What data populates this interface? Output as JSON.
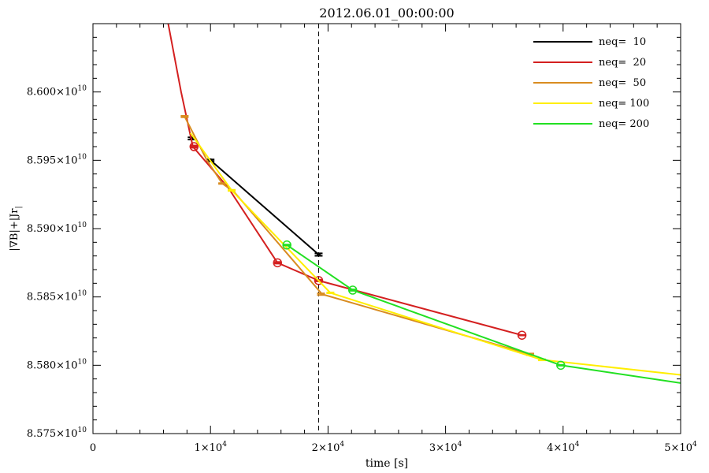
{
  "chart_data": {
    "type": "line",
    "title": "2012.06.01_00:00:00",
    "xlabel": "time [s]",
    "ylabel": "|∇B|+|Jr|",
    "xlim": [
      0,
      50000
    ],
    "ylim": [
      85750000000.0,
      86050000000.0
    ],
    "x_ticks": [
      {
        "value": 0,
        "label": "0",
        "exp": ""
      },
      {
        "value": 10000,
        "label": "1×10",
        "exp": "4"
      },
      {
        "value": 20000,
        "label": "2×10",
        "exp": "4"
      },
      {
        "value": 30000,
        "label": "3×10",
        "exp": "4"
      },
      {
        "value": 40000,
        "label": "4×10",
        "exp": "4"
      },
      {
        "value": 50000,
        "label": "5×10",
        "exp": "4"
      }
    ],
    "y_ticks": [
      {
        "value": 85750000000.0,
        "label": "8.575×10",
        "exp": "10"
      },
      {
        "value": 85800000000.0,
        "label": "8.580×10",
        "exp": "10"
      },
      {
        "value": 85850000000.0,
        "label": "8.585×10",
        "exp": "10"
      },
      {
        "value": 85900000000.0,
        "label": "8.590×10",
        "exp": "10"
      },
      {
        "value": 85950000000.0,
        "label": "8.595×10",
        "exp": "10"
      },
      {
        "value": 86000000000.0,
        "label": "8.600×10",
        "exp": "10"
      }
    ],
    "vline_x": 19200,
    "grid": false,
    "legend_position": "top-right",
    "series": [
      {
        "name": "neq=  10",
        "color": "#000000",
        "marker": "dot",
        "line": [
          [
            10000,
            85950000000.0
          ],
          [
            19200,
            85881000000.0
          ]
        ],
        "points": [
          {
            "x": 8400,
            "y": 85966000000.0,
            "err": 800000.0
          },
          {
            "x": 10000,
            "y": 85950000000.0,
            "err": 600000.0
          },
          {
            "x": 19200,
            "y": 85881000000.0,
            "err": 900000.0
          }
        ]
      },
      {
        "name": "neq=  20",
        "color": "#d42020",
        "marker": "circle",
        "line": [
          [
            6400,
            86050000000.0
          ],
          [
            7500,
            86000000000.0
          ],
          [
            8500,
            85960000000.0
          ],
          [
            11500,
            85930000000.0
          ],
          [
            15700,
            85875000000.0
          ],
          [
            19200,
            85862000000.0
          ],
          [
            36500,
            85822000000.0
          ]
        ],
        "points": [
          {
            "x": 8600,
            "y": 85960000000.0,
            "err": 800000.0
          },
          {
            "x": 15700,
            "y": 85875000000.0,
            "err": 600000.0
          },
          {
            "x": 19200,
            "y": 85862000000.0,
            "err": 600000.0
          },
          {
            "x": 36500,
            "y": 85822000000.0,
            "err": 200000.0
          }
        ]
      },
      {
        "name": "neq=  50",
        "color": "#d98c20",
        "marker": "none",
        "line": [
          [
            7800,
            85982000000.0
          ],
          [
            9700,
            85950000000.0
          ],
          [
            11000,
            85933000000.0
          ],
          [
            12000,
            85927000000.0
          ],
          [
            19500,
            85852000000.0
          ],
          [
            37200,
            85808000000.0
          ]
        ],
        "points": [
          {
            "x": 7800,
            "y": 85982000000.0,
            "err": 500000.0
          },
          {
            "x": 11000,
            "y": 85933000000.0,
            "err": 300000.0
          },
          {
            "x": 19400,
            "y": 85852000000.0,
            "err": 600000.0
          },
          {
            "x": 37200,
            "y": 85808000000.0,
            "err": 600000.0
          }
        ]
      },
      {
        "name": "neq= 100",
        "color": "#ffee00",
        "marker": "none",
        "line": [
          [
            8300,
            85970000000.0
          ],
          [
            11800,
            85928000000.0
          ],
          [
            20200,
            85853000000.0
          ],
          [
            38200,
            85804000000.0
          ],
          [
            50000,
            85793000000.0
          ]
        ],
        "points": [
          {
            "x": 11800,
            "y": 85928000000.0,
            "err": 400000.0
          },
          {
            "x": 20200,
            "y": 85853000000.0,
            "err": 300000.0
          },
          {
            "x": 38200,
            "y": 85804000000.0,
            "err": 400000.0
          }
        ]
      },
      {
        "name": "neq= 200",
        "color": "#22e022",
        "marker": "circle",
        "line": [
          [
            16500,
            85888000000.0
          ],
          [
            22100,
            85855000000.0
          ],
          [
            39800,
            85800000000.0
          ],
          [
            50000,
            85787000000.0
          ]
        ],
        "points": [
          {
            "x": 16500,
            "y": 85888000000.0,
            "err": 300000.0
          },
          {
            "x": 22100,
            "y": 85855000000.0,
            "err": 500000.0
          },
          {
            "x": 39800,
            "y": 85800000000.0,
            "err": 300000.0
          }
        ]
      }
    ]
  }
}
